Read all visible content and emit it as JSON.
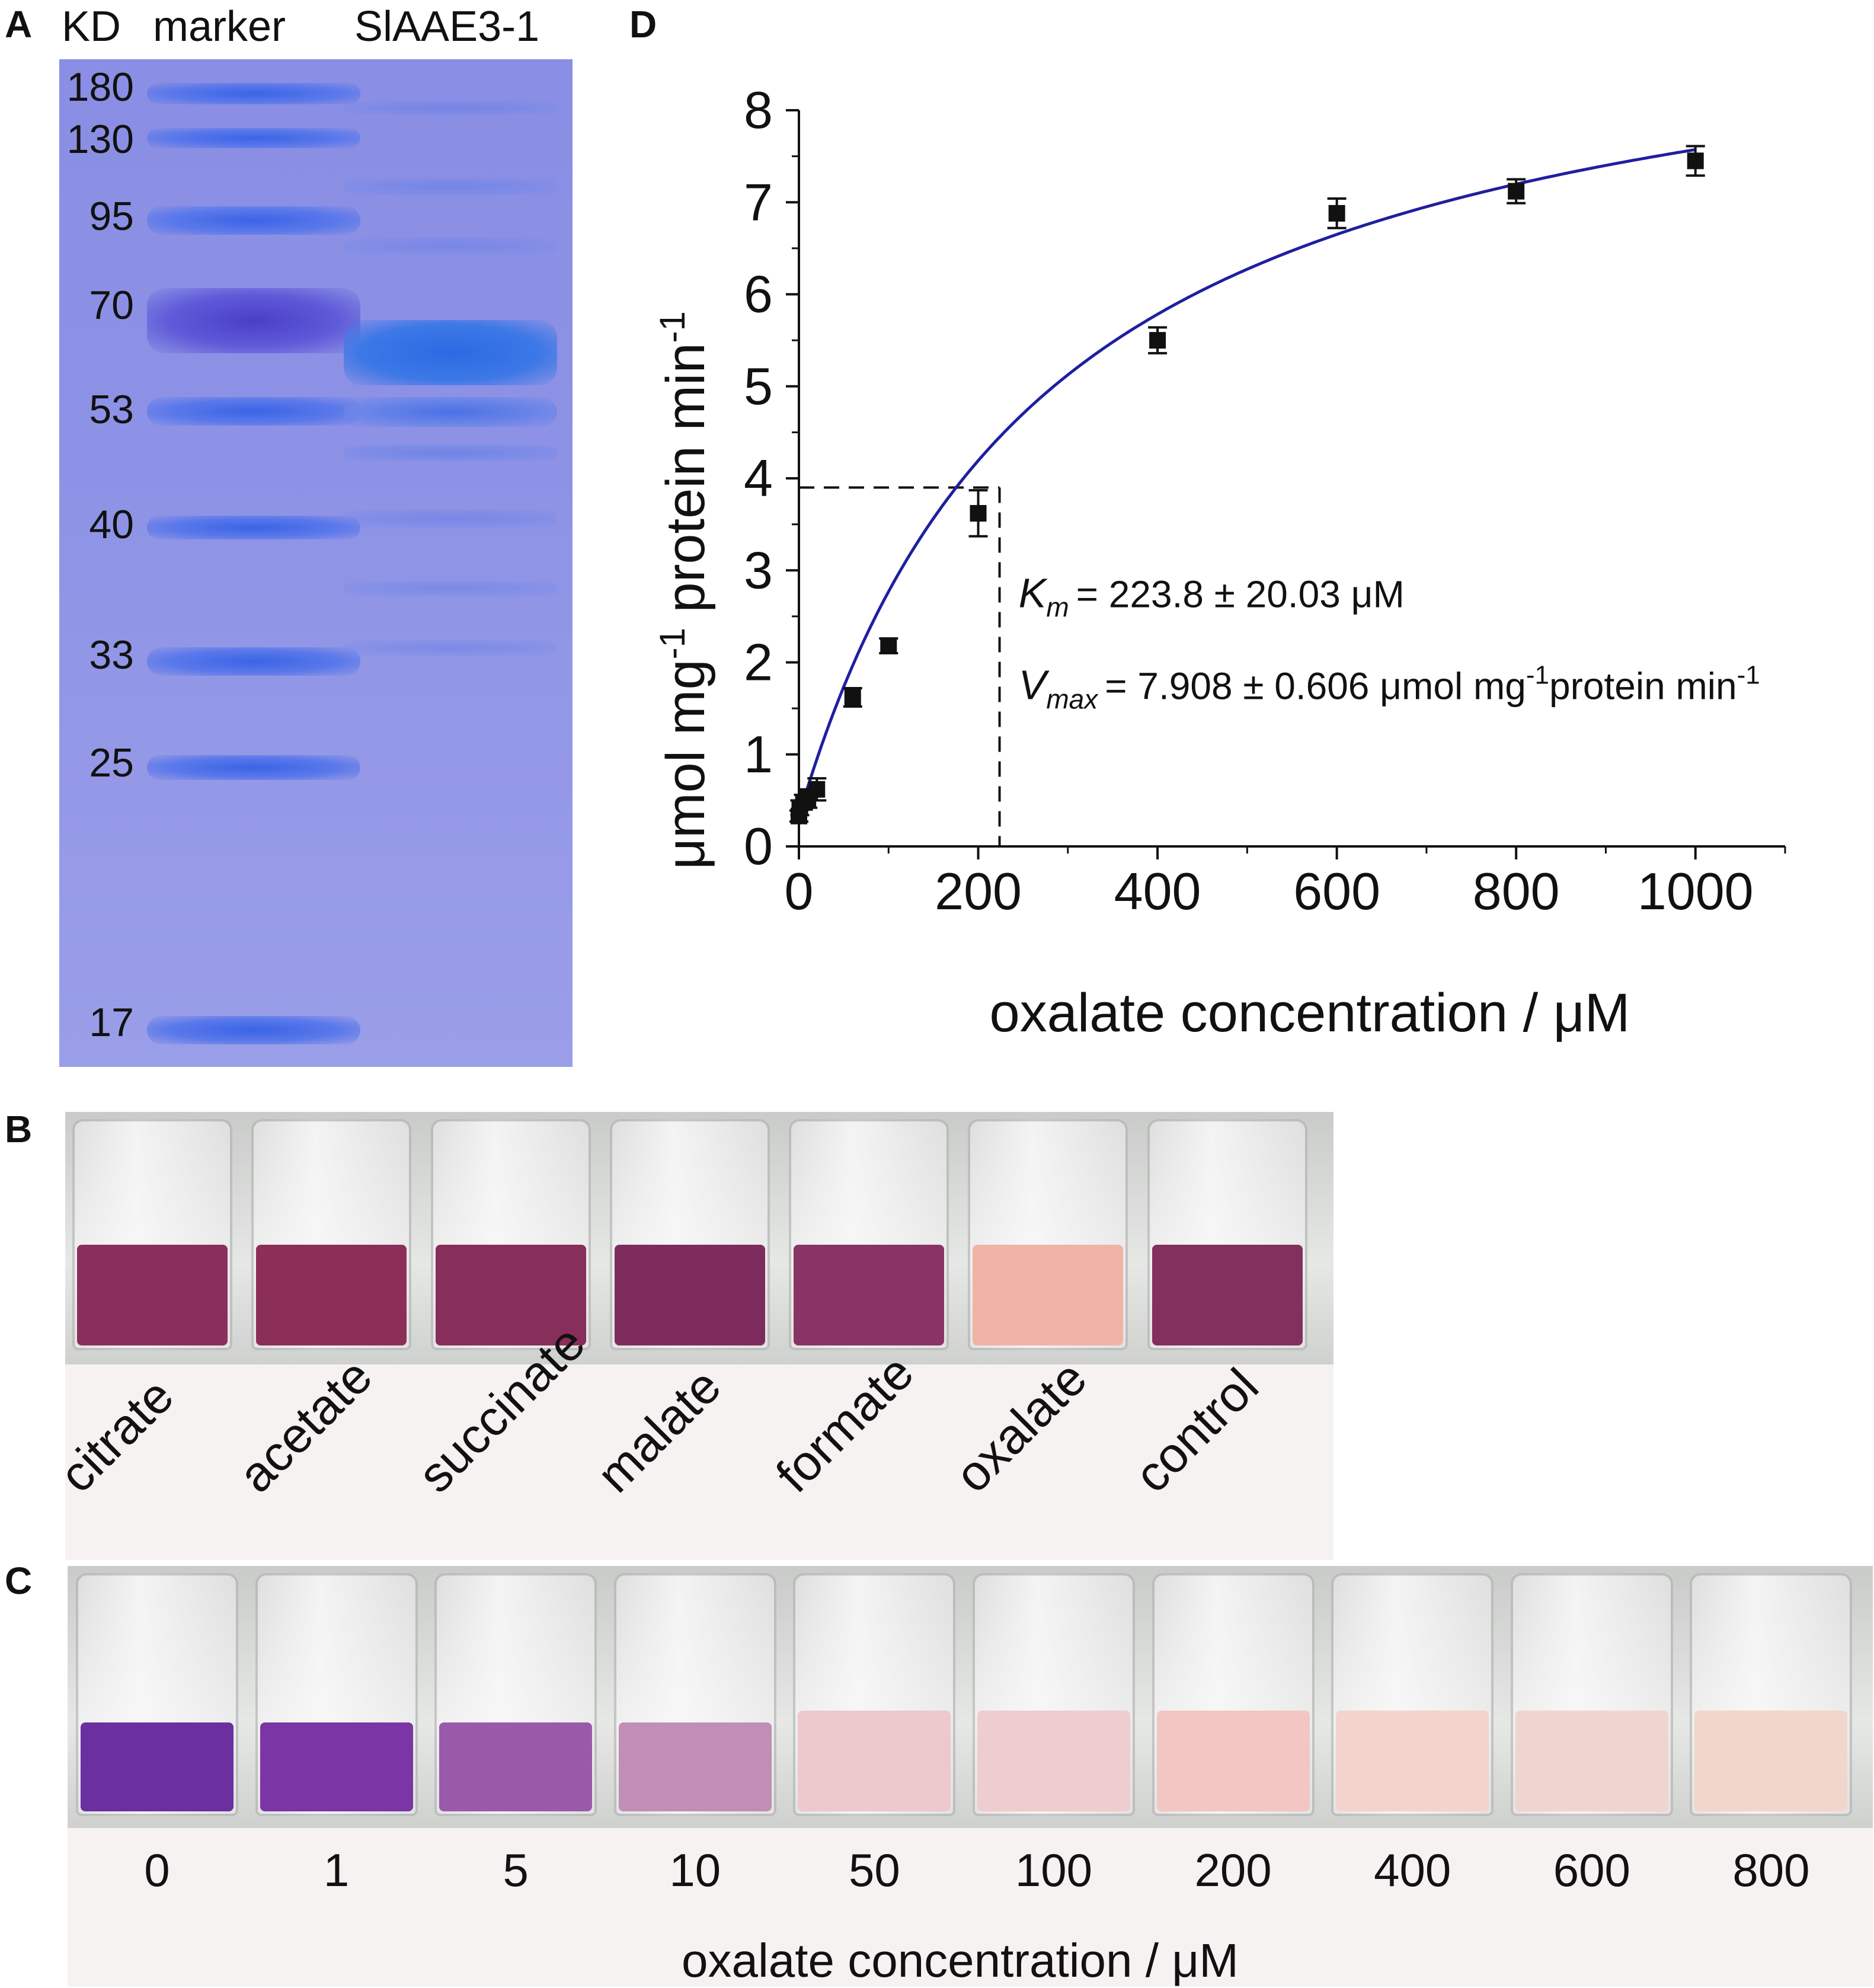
{
  "panel_labels": {
    "a": "A",
    "b": "B",
    "c": "C",
    "d": "D"
  },
  "gel": {
    "header_kd": "KD",
    "header_marker": "marker",
    "header_sample": "SlAAE3-1",
    "marker_weights": [
      "180",
      "130",
      "95",
      "70",
      "53",
      "40",
      "33",
      "25",
      "17"
    ]
  },
  "panel_b": {
    "labels": [
      "citrate",
      "acetate",
      "succinate",
      "malate",
      "formate",
      "oxalate",
      "control"
    ],
    "liquid_colors": [
      "#8a2f5c",
      "#8c2f58",
      "#882e5a",
      "#7e2c5e",
      "#8a3466",
      "#f0b4a6",
      "#84305e"
    ]
  },
  "panel_c": {
    "labels": [
      "0",
      "1",
      "5",
      "10",
      "50",
      "100",
      "200",
      "400",
      "600",
      "800"
    ],
    "axis_label": "oxalate concentration / μM",
    "liquid_colors": [
      "#6c2fa0",
      "#7b35a4",
      "#9a5aaa",
      "#c08eb6",
      "#edc8cc",
      "#efcccd",
      "#f2c6c2",
      "#f2d4cc",
      "#f0d5cf",
      "#f2d6cc"
    ]
  },
  "chart_data": {
    "type": "scatter",
    "xlabel": "oxalate concentration / μM",
    "ylabel": "μmol mg-1 protein min-1",
    "xlim": [
      0,
      1100
    ],
    "ylim": [
      0,
      8
    ],
    "xticks": [
      0,
      200,
      400,
      600,
      800,
      1000
    ],
    "yticks": [
      0,
      1,
      2,
      3,
      4,
      5,
      6,
      7,
      8
    ],
    "series": [
      {
        "x": [
          0,
          1,
          5,
          10,
          20,
          60,
          100,
          200,
          400,
          600,
          800,
          1000
        ],
        "y": [
          0.33,
          0.42,
          0.48,
          0.52,
          0.62,
          1.62,
          2.18,
          3.62,
          5.5,
          6.88,
          7.12,
          7.45
        ],
        "err": [
          0.06,
          0.08,
          0.08,
          0.1,
          0.12,
          0.1,
          0.08,
          0.25,
          0.14,
          0.16,
          0.13,
          0.16
        ]
      }
    ],
    "fit": {
      "color": "#1f1fa0"
    },
    "km_guide": {
      "x": 223.8,
      "y": 3.9
    },
    "annotations": {
      "km_symbol": "K",
      "km_sub": "m",
      "km_text": "= 223.8 ± 20.03 μM",
      "vmax_symbol": "V",
      "vmax_sub": "max",
      "vmax_text_1": "= 7.908 ± 0.606 μmol mg",
      "vmax_sup": "-1",
      "vmax_text_2": "protein min",
      "vmax_sup2": "-1"
    },
    "ylabel_parts": {
      "p1": "μmol mg",
      "s1": "-1",
      "p2": " protein min",
      "s2": "-1"
    }
  }
}
